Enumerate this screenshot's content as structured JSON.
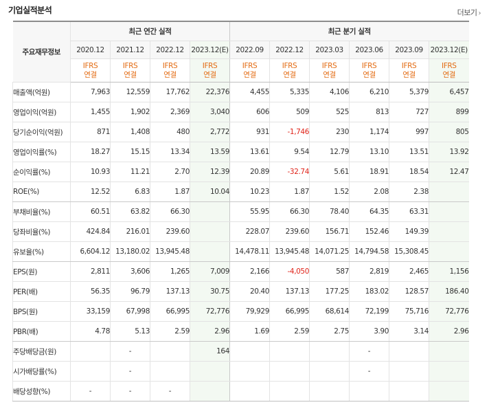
{
  "section_title": "기업실적분석",
  "more_label": "더보기",
  "table": {
    "corner_label": "주요재무정보",
    "group_annual": "최근 연간 실적",
    "group_quarter": "최근 분기 실적",
    "periods": [
      "2020.12",
      "2021.12",
      "2022.12",
      "2023.12(E)",
      "2022.09",
      "2022.12",
      "2023.03",
      "2023.06",
      "2023.09",
      "2023.12(E)"
    ],
    "basis_top": "IFRS",
    "basis_bottom": "연결",
    "rows": [
      {
        "label": "매출액(억원)",
        "values": [
          "7,963",
          "12,559",
          "17,762",
          "22,376",
          "4,455",
          "5,335",
          "4,106",
          "6,210",
          "5,379",
          "6,457"
        ]
      },
      {
        "label": "영업이익(억원)",
        "values": [
          "1,455",
          "1,902",
          "2,369",
          "3,040",
          "606",
          "509",
          "525",
          "813",
          "727",
          "899"
        ]
      },
      {
        "label": "당기순이익(억원)",
        "values": [
          "871",
          "1,408",
          "480",
          "2,772",
          "931",
          "-1,746",
          "230",
          "1,174",
          "997",
          "805"
        ]
      },
      {
        "label": "영업이익률(%)",
        "values": [
          "18.27",
          "15.15",
          "13.34",
          "13.59",
          "13.61",
          "9.54",
          "12.79",
          "13.10",
          "13.51",
          "13.92"
        ]
      },
      {
        "label": "순이익률(%)",
        "values": [
          "10.93",
          "11.21",
          "2.70",
          "12.39",
          "20.89",
          "-32.74",
          "5.61",
          "18.91",
          "18.54",
          "12.47"
        ]
      },
      {
        "label": "ROE(%)",
        "values": [
          "12.52",
          "6.83",
          "1.87",
          "10.04",
          "10.23",
          "1.87",
          "1.52",
          "2.08",
          "2.38",
          ""
        ]
      },
      {
        "label": "부채비율(%)",
        "values": [
          "60.51",
          "63.82",
          "66.30",
          "",
          "55.95",
          "66.30",
          "78.40",
          "64.35",
          "63.31",
          ""
        ]
      },
      {
        "label": "당좌비율(%)",
        "values": [
          "424.84",
          "216.01",
          "239.60",
          "",
          "228.07",
          "239.60",
          "156.71",
          "152.46",
          "149.39",
          ""
        ]
      },
      {
        "label": "유보율(%)",
        "values": [
          "6,604.12",
          "13,180.02",
          "13,945.48",
          "",
          "14,478.11",
          "13,945.48",
          "14,071.25",
          "14,794.58",
          "15,308.45",
          ""
        ]
      },
      {
        "label": "EPS(원)",
        "values": [
          "2,811",
          "3,606",
          "1,265",
          "7,009",
          "2,166",
          "-4,050",
          "587",
          "2,819",
          "2,465",
          "1,156"
        ]
      },
      {
        "label": "PER(배)",
        "values": [
          "56.35",
          "96.79",
          "137.13",
          "30.75",
          "20.40",
          "137.13",
          "177.25",
          "183.02",
          "128.57",
          "186.40"
        ]
      },
      {
        "label": "BPS(원)",
        "values": [
          "33,159",
          "67,998",
          "66,995",
          "72,776",
          "79,929",
          "66,995",
          "68,614",
          "72,199",
          "75,716",
          "72,776"
        ]
      },
      {
        "label": "PBR(배)",
        "values": [
          "4.78",
          "5.13",
          "2.59",
          "2.96",
          "1.69",
          "2.59",
          "2.75",
          "3.90",
          "3.14",
          "2.96"
        ]
      },
      {
        "label": "주당배당금(원)",
        "values": [
          "",
          "-",
          "",
          "164",
          "",
          "",
          "",
          "-",
          "",
          ""
        ]
      },
      {
        "label": "시가배당률(%)",
        "values": [
          "",
          "-",
          "",
          "",
          "",
          "",
          "",
          "-",
          "",
          ""
        ]
      },
      {
        "label": "배당성향(%)",
        "values": [
          "-",
          "-",
          "-",
          "",
          "",
          "",
          "",
          "",
          "",
          ""
        ]
      }
    ]
  },
  "colors": {
    "negative": "#e0241a",
    "basis": "#e36b12",
    "estimate_bg": "#f3f9f2"
  }
}
